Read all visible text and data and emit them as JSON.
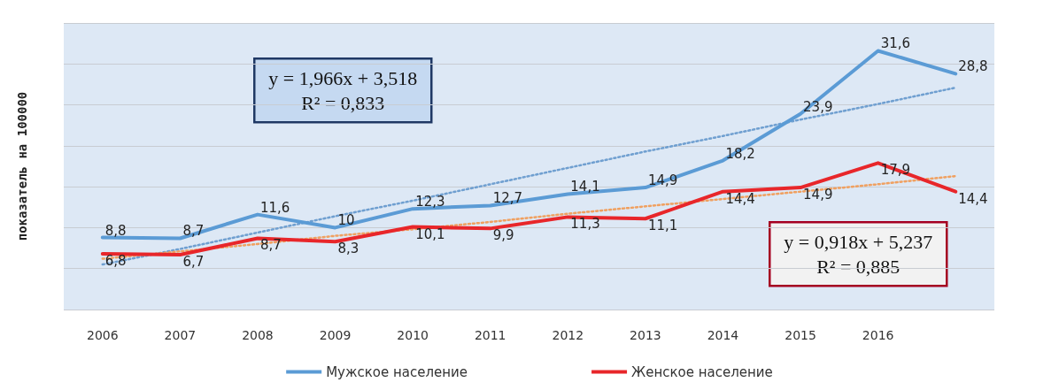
{
  "chart_data": {
    "type": "line",
    "ylabel": "показатель на 100000",
    "categories": [
      "2006",
      "2007",
      "2008",
      "2009",
      "2010",
      "2011",
      "2012",
      "2013",
      "2014",
      "2015",
      "2016",
      null
    ],
    "series": [
      {
        "name": "Мужское население",
        "color": "#5b9bd5",
        "values": [
          8.8,
          8.7,
          11.6,
          10,
          12.3,
          12.7,
          14.1,
          14.9,
          18.2,
          23.9,
          31.6,
          28.8
        ],
        "value_labels": [
          "8,8",
          "8,7",
          "11,6",
          "10",
          "12,3",
          "12,7",
          "14,1",
          "14,9",
          "18,2",
          "23,9",
          "31,6",
          "28,8"
        ]
      },
      {
        "name": "Женское население",
        "color": "#e8262a",
        "values": [
          6.8,
          6.7,
          8.7,
          8.3,
          10.1,
          9.9,
          11.3,
          11.1,
          14.4,
          14.9,
          17.9,
          14.4
        ],
        "value_labels": [
          "6,8",
          "6,7",
          "8,7",
          "8,3",
          "10,1",
          "9,9",
          "11,3",
          "11,1",
          "14,4",
          "14,9",
          "17,9",
          "14,4"
        ]
      },
      {
        "type": "line",
        "color": "#6f9fd0",
        "line_style": "dotted",
        "values": [
          5.5,
          7.4,
          9.4,
          11.4,
          13.3,
          15.3,
          17.3,
          19.3,
          21.2,
          23.2,
          25.1,
          27.1
        ]
      },
      {
        "type": "line",
        "color": "#f0a060",
        "line_style": "dotted",
        "values": [
          6.2,
          7.1,
          8.0,
          9.0,
          9.8,
          10.7,
          11.7,
          12.6,
          13.5,
          14.4,
          15.3,
          16.3
        ]
      }
    ],
    "tick_labels": "x",
    "grid": "y",
    "legend": "bottom",
    "marker": "none",
    "annotations": [
      "y = 1,966x + 3,518\nR² = 0,833",
      "y = 0,918x + 5,237\nR² = 0,885"
    ]
  }
}
